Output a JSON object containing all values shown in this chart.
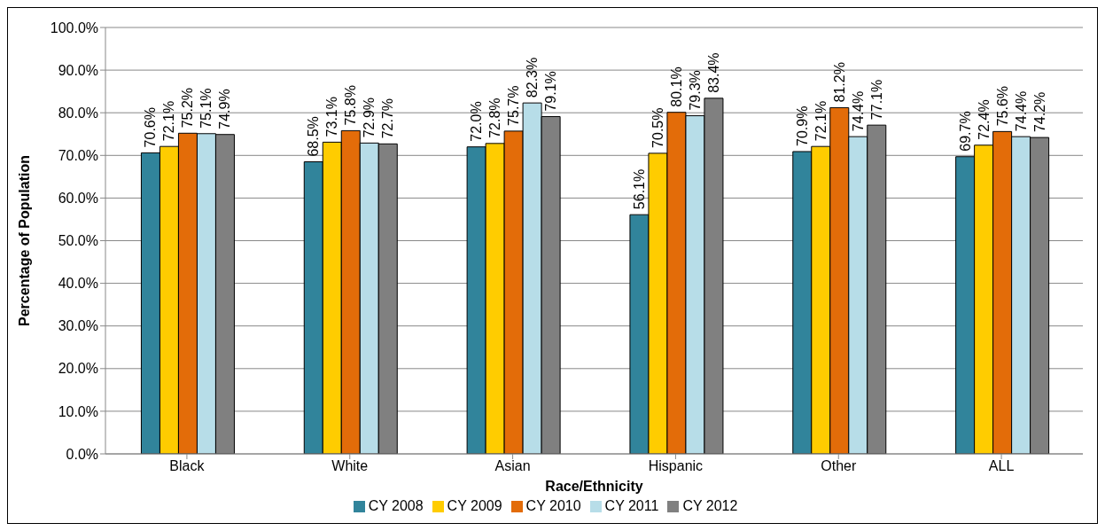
{
  "chart_data": {
    "type": "bar",
    "xlabel": "Race/Ethnicity",
    "ylabel": "Percentage of Population",
    "categories": [
      "Black",
      "White",
      "Asian",
      "Hispanic",
      "Other",
      "ALL"
    ],
    "series": [
      {
        "name": "CY 2008",
        "color": "#31849b",
        "values": [
          70.6,
          68.5,
          72.0,
          56.1,
          70.9,
          69.7
        ],
        "value_labels": [
          "70.6%",
          "68.5%",
          "72.0%",
          "56.1%",
          "70.9%",
          "69.7%"
        ]
      },
      {
        "name": "CY 2009",
        "color": "#ffcc00",
        "values": [
          72.1,
          73.1,
          72.8,
          70.5,
          72.1,
          72.4
        ],
        "value_labels": [
          "72.1%",
          "73.1%",
          "72.8%",
          "70.5%",
          "72.1%",
          "72.4%"
        ]
      },
      {
        "name": "CY 2010",
        "color": "#e36c09",
        "values": [
          75.2,
          75.8,
          75.7,
          80.1,
          81.2,
          75.6
        ],
        "value_labels": [
          "75.2%",
          "75.8%",
          "75.7%",
          "80.1%",
          "81.2%",
          "75.6%"
        ]
      },
      {
        "name": "CY 2011",
        "color": "#b7dde8",
        "values": [
          75.1,
          72.9,
          82.3,
          79.3,
          74.4,
          74.4
        ],
        "value_labels": [
          "75.1%",
          "72.9%",
          "82.3%",
          "79.3%",
          "74.4%",
          "74.4%"
        ]
      },
      {
        "name": "CY 2012",
        "color": "#808080",
        "values": [
          74.9,
          72.7,
          79.1,
          83.4,
          77.1,
          74.2
        ],
        "value_labels": [
          "74.9%",
          "72.7%",
          "79.1%",
          "83.4%",
          "77.1%",
          "74.2%"
        ]
      }
    ],
    "ylim": [
      0,
      100
    ],
    "yticks": [
      {
        "value": 0,
        "label": "0.0%"
      },
      {
        "value": 10,
        "label": "10.0%"
      },
      {
        "value": 20,
        "label": "20.0%"
      },
      {
        "value": 30,
        "label": "30.0%"
      },
      {
        "value": 40,
        "label": "40.0%"
      },
      {
        "value": 50,
        "label": "50.0%"
      },
      {
        "value": 60,
        "label": "60.0%"
      },
      {
        "value": 70,
        "label": "70.0%"
      },
      {
        "value": 80,
        "label": "80.0%"
      },
      {
        "value": 90,
        "label": "90.0%"
      },
      {
        "value": 100,
        "label": "100.0%"
      }
    ],
    "grid": "y",
    "legend": "bottom"
  }
}
